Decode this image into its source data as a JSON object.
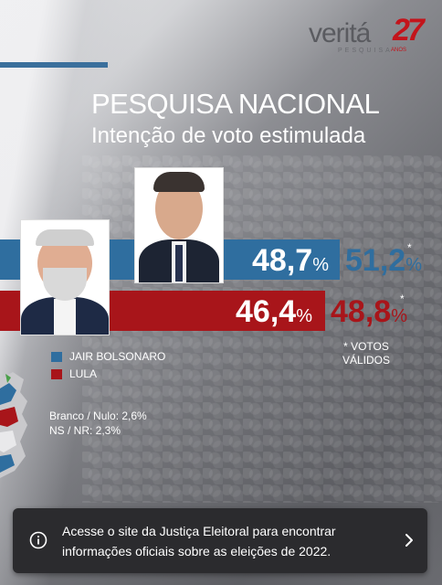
{
  "brand": {
    "name": "veritá",
    "sub": "PESQUISA",
    "anniversary": "27",
    "anos": "ANOS"
  },
  "header": {
    "title": "PESQUISA NACIONAL",
    "subtitle": "Intenção de voto estimulada"
  },
  "candidates": [
    {
      "name": "JAIR BOLSONARO",
      "pct_int": "48,7",
      "valid_int": "51,2",
      "color": "#2f6e9f"
    },
    {
      "name": "LULA",
      "pct_int": "46,4",
      "valid_int": "48,8",
      "color": "#a8151a"
    }
  ],
  "percent_sign": "%",
  "asterisk": "*",
  "votos_validos": "* VOTOS VÁLIDOS",
  "stats": {
    "branco_nulo": "Branco / Nulo: 2,6%",
    "ns_nr": "NS / NR: 2,3%"
  },
  "toast": {
    "message": "Acesse o site da Justiça Eleitoral para encontrar informações oficiais sobre as eleições de 2022.",
    "icon": "info-icon",
    "action_icon": "chevron-right-icon"
  }
}
